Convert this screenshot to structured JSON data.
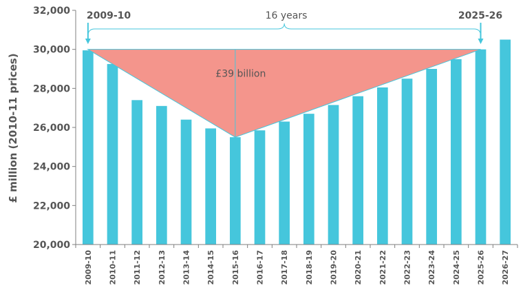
{
  "chart_data": {
    "type": "bar",
    "title": "",
    "xlabel": "",
    "ylabel": "£ million (2010-11 prices)",
    "ylim": [
      20000,
      32000
    ],
    "yticks": [
      20000,
      22000,
      24000,
      26000,
      28000,
      30000,
      32000
    ],
    "ytick_labels": [
      "20,000",
      "22,000",
      "24,000",
      "26,000",
      "28,000",
      "30,000",
      "32,000"
    ],
    "categories": [
      "2009-10",
      "2010-11",
      "2011-12",
      "2012-13",
      "2013-14",
      "2014-15",
      "2015-16",
      "2016-17",
      "2017-18",
      "2018-19",
      "2019-20",
      "2020-21",
      "2021-22",
      "2022-23",
      "2023-24",
      "2024-25",
      "2025-26",
      "2026-27"
    ],
    "values": [
      29950,
      29250,
      27400,
      27100,
      26400,
      25950,
      25500,
      25850,
      26300,
      26700,
      27150,
      27600,
      28050,
      28500,
      29000,
      29500,
      30000,
      30500
    ],
    "grid": false,
    "colors": {
      "bar": "#45c6dc",
      "triangle": "#f4958c",
      "annotation": "#45c6dc",
      "text": "#555555"
    },
    "annotations": {
      "start_label": "2009-10",
      "end_label": "2025-26",
      "span_label": "16 years",
      "area_label": "£39 billion",
      "triangle_vertices_categories": [
        "2009-10",
        "2015-16",
        "2025-26"
      ],
      "triangle_top_value": 30000,
      "triangle_bottom_value": 25500
    }
  }
}
